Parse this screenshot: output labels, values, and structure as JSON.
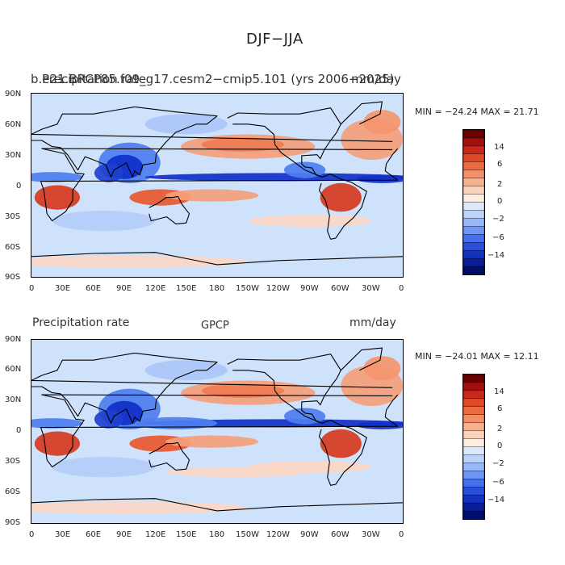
{
  "title": "DJF−JJA",
  "panels": [
    {
      "left_title": "b.e21.BRCP85.f09_g17.cesm2−cmip5.101 (yrs 2006−2025)",
      "left_title_overlay": "Precipitation rate",
      "center_title": "",
      "units": "mm/day",
      "min_max": "MIN = −24.24  MAX =   21.71",
      "min": -24.24,
      "max": 21.71
    },
    {
      "left_title": "Precipitation rate",
      "left_title_overlay": "",
      "center_title": "GPCP",
      "units": "mm/day",
      "min_max": "MIN = −24.01  MAX =   12.11",
      "min": -24.01,
      "max": 12.11
    }
  ],
  "lat_ticks": [
    "90N",
    "60N",
    "30N",
    "0",
    "30S",
    "60S",
    "90S"
  ],
  "lon_ticks": [
    "0",
    "30E",
    "60E",
    "90E",
    "120E",
    "150E",
    "180",
    "150W",
    "120W",
    "90W",
    "60W",
    "30W",
    "0"
  ],
  "colorbar": {
    "labels": [
      "14",
      "6",
      "2",
      "0",
      "−2",
      "−6",
      "−14"
    ],
    "colors": [
      "#6b0000",
      "#a10f0f",
      "#c7281a",
      "#de4a28",
      "#ec6a3f",
      "#f38e66",
      "#f7b090",
      "#fbd3bd",
      "#fdece0",
      "#dce9fb",
      "#bcd3fb",
      "#99b8f9",
      "#6f96f4",
      "#4470ee",
      "#2a4fdb",
      "#1432c0",
      "#0a1d98",
      "#000d6a"
    ]
  },
  "palette": {
    "ocean_bg": "#cfe2fb",
    "land_line": "#000000",
    "wet_strong": "#1030c8",
    "wet_mid": "#4d7ef0",
    "dry_strong": "#d63a1f",
    "dry_mid": "#f5a07a",
    "dry_light": "#fbd7c6"
  }
}
